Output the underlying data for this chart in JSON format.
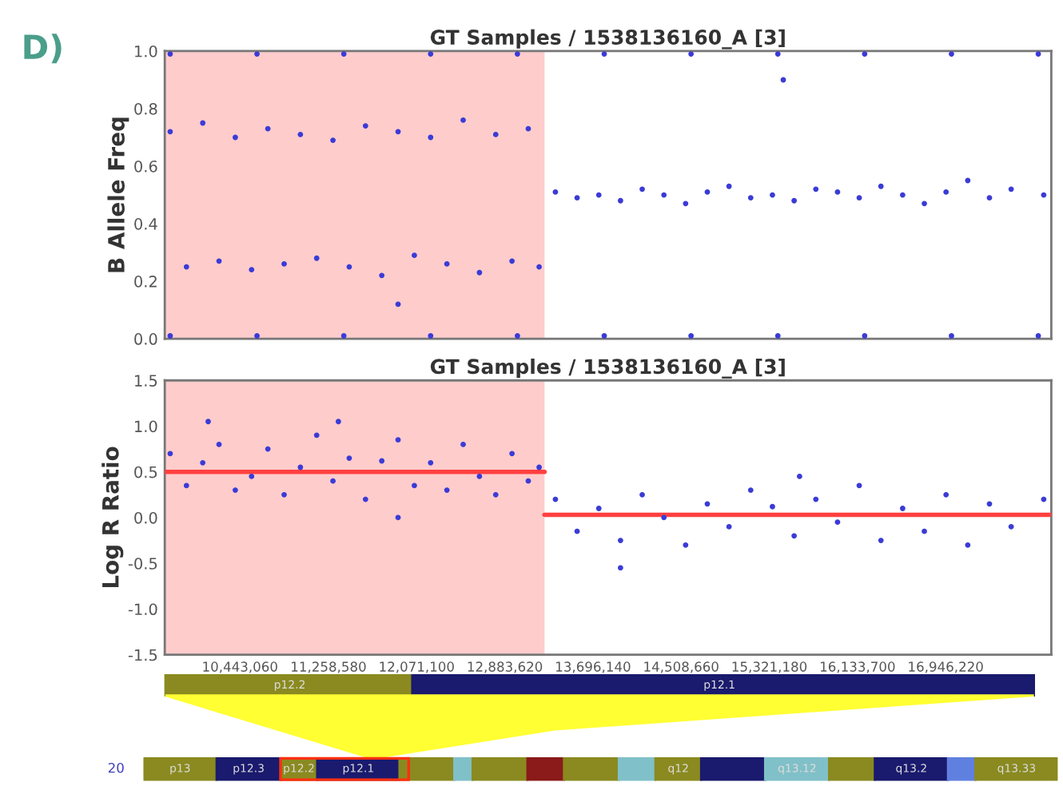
{
  "chart_data": [
    {
      "type": "scatter",
      "title": "GT Samples / 1538136160_A [3]",
      "ylabel": "B Allele Freq",
      "annotations": [
        "D)"
      ],
      "marker": "circle",
      "grid": false,
      "tick_labels": "y",
      "xlim": [
        9750000,
        17920000
      ],
      "ylim": [
        0.0,
        1.0
      ],
      "yticks": [
        {
          "value": 0.0,
          "label": "0.0"
        },
        {
          "value": 0.2,
          "label": "0.2"
        },
        {
          "value": 0.4,
          "label": "0.4"
        },
        {
          "value": 0.6,
          "label": "0.6"
        },
        {
          "value": 0.8,
          "label": "0.8"
        },
        {
          "value": 1.0,
          "label": "1.0"
        }
      ],
      "bands": [
        {
          "axis": "x",
          "from": 9750000,
          "to": 13250000,
          "color": "#ffcccc"
        }
      ],
      "series": [
        {
          "color": "#3b3bd6",
          "x": [
            9800000,
            9950000,
            10100000,
            10250000,
            10400000,
            10550000,
            10700000,
            10850000,
            11000000,
            11150000,
            11300000,
            11450000,
            11600000,
            11750000,
            11900000,
            12050000,
            12200000,
            12350000,
            12500000,
            12650000,
            12800000,
            12950000,
            13100000,
            13200000
          ],
          "values": [
            0.72,
            0.25,
            0.75,
            0.27,
            0.7,
            0.24,
            0.73,
            0.26,
            0.71,
            0.28,
            0.69,
            0.25,
            0.74,
            0.22,
            0.72,
            0.29,
            0.7,
            0.26,
            0.76,
            0.23,
            0.71,
            0.27,
            0.73,
            0.25
          ]
        },
        {
          "color": "#3b3bd6",
          "x": [
            13350000,
            13550000,
            13750000,
            13950000,
            14150000,
            14350000,
            14550000,
            14750000,
            14950000,
            15150000,
            15350000,
            15550000,
            15750000,
            15950000,
            16150000,
            16350000,
            16550000,
            16750000,
            16950000,
            17150000,
            17350000,
            17550000,
            17850000
          ],
          "values": [
            0.51,
            0.49,
            0.5,
            0.48,
            0.52,
            0.5,
            0.47,
            0.51,
            0.53,
            0.49,
            0.5,
            0.48,
            0.52,
            0.51,
            0.49,
            0.53,
            0.5,
            0.47,
            0.51,
            0.55,
            0.49,
            0.52,
            0.5
          ]
        },
        {
          "color": "#3b3bd6",
          "x": [
            9800000,
            10600000,
            11400000,
            12200000,
            13000000,
            13800000,
            14600000,
            15400000,
            16200000,
            17000000,
            17800000
          ],
          "values": [
            0.99,
            0.99,
            0.99,
            0.99,
            0.99,
            0.99,
            0.99,
            0.99,
            0.99,
            0.99,
            0.99
          ]
        },
        {
          "color": "#3b3bd6",
          "x": [
            9800000,
            10600000,
            11400000,
            12200000,
            13000000,
            13800000,
            14600000,
            15400000,
            16200000,
            17000000,
            17800000
          ],
          "values": [
            0.01,
            0.01,
            0.01,
            0.01,
            0.01,
            0.01,
            0.01,
            0.01,
            0.01,
            0.01,
            0.01
          ]
        },
        {
          "color": "#3b3bd6",
          "x": [
            11900000,
            15450000
          ],
          "values": [
            0.12,
            0.9
          ]
        }
      ]
    },
    {
      "type": "scatter",
      "title": "GT Samples / 1538136160_A [3]",
      "ylabel": "Log R Ratio",
      "marker": "circle",
      "grid": false,
      "xlim": [
        9750000,
        17920000
      ],
      "ylim": [
        -1.5,
        1.5
      ],
      "yticks": [
        {
          "value": -1.5,
          "label": "-1.5"
        },
        {
          "value": -1.0,
          "label": "-1.0"
        },
        {
          "value": -0.5,
          "label": "-0.5"
        },
        {
          "value": 0.0,
          "label": "0.0"
        },
        {
          "value": 0.5,
          "label": "0.5"
        },
        {
          "value": 1.0,
          "label": "1.0"
        },
        {
          "value": 1.5,
          "label": "1.5"
        }
      ],
      "xticks": [
        {
          "value": 10443060,
          "label": "10,443,060"
        },
        {
          "value": 11258580,
          "label": "11,258,580"
        },
        {
          "value": 12071100,
          "label": "12,071,100"
        },
        {
          "value": 12883620,
          "label": "12,883,620"
        },
        {
          "value": 13696140,
          "label": "13,696,140"
        },
        {
          "value": 14508660,
          "label": "14,508,660"
        },
        {
          "value": 15321180,
          "label": "15,321,180"
        },
        {
          "value": 16133700,
          "label": "16,133,700"
        },
        {
          "value": 16946220,
          "label": "16,946,220"
        }
      ],
      "bands": [
        {
          "axis": "x",
          "from": 9750000,
          "to": 13250000,
          "color": "#ffcccc"
        }
      ],
      "series": [
        {
          "color": "#3b3bd6",
          "x": [
            9800000,
            9950000,
            10100000,
            10250000,
            10400000,
            10550000,
            10700000,
            10850000,
            11000000,
            11150000,
            11300000,
            11450000,
            11600000,
            11750000,
            11900000,
            12050000,
            12200000,
            12350000,
            12500000,
            12650000,
            12800000,
            12950000,
            13100000,
            13200000,
            10150000,
            11350000,
            11900000
          ],
          "values": [
            0.7,
            0.35,
            0.6,
            0.8,
            0.3,
            0.45,
            0.75,
            0.25,
            0.55,
            0.9,
            0.4,
            0.65,
            0.2,
            0.62,
            0.85,
            0.35,
            0.6,
            0.3,
            0.8,
            0.45,
            0.25,
            0.7,
            0.4,
            0.55,
            1.05,
            1.05,
            0.0
          ]
        },
        {
          "color": "#3b3bd6",
          "x": [
            13350000,
            13550000,
            13750000,
            13950000,
            14150000,
            14350000,
            14550000,
            14750000,
            14950000,
            15150000,
            15350000,
            15550000,
            15750000,
            15950000,
            16150000,
            16350000,
            16550000,
            16750000,
            16950000,
            17150000,
            17350000,
            17550000,
            17850000,
            15600000,
            13950000
          ],
          "values": [
            0.2,
            -0.15,
            0.1,
            -0.25,
            0.25,
            0.0,
            -0.3,
            0.15,
            -0.1,
            0.3,
            0.12,
            -0.2,
            0.2,
            -0.05,
            0.35,
            -0.25,
            0.1,
            -0.15,
            0.25,
            -0.3,
            0.15,
            -0.1,
            0.2,
            0.45,
            -0.55
          ]
        },
        {
          "type": "line",
          "marker": "none",
          "color": "#ff4040",
          "x": [
            9750000,
            13250000
          ],
          "values": [
            0.5,
            0.5
          ]
        },
        {
          "type": "line",
          "marker": "none",
          "color": "#ff4040",
          "x": [
            13250000,
            17920000
          ],
          "values": [
            0.03,
            0.03
          ]
        }
      ]
    },
    {
      "type": "other",
      "annotations": [
        "p12.2",
        "p12.1",
        "20",
        "p13",
        "p12.3",
        "p12.2",
        "p12.1",
        "q12",
        "q13.12",
        "q13.2",
        "q13.33"
      ]
    }
  ]
}
